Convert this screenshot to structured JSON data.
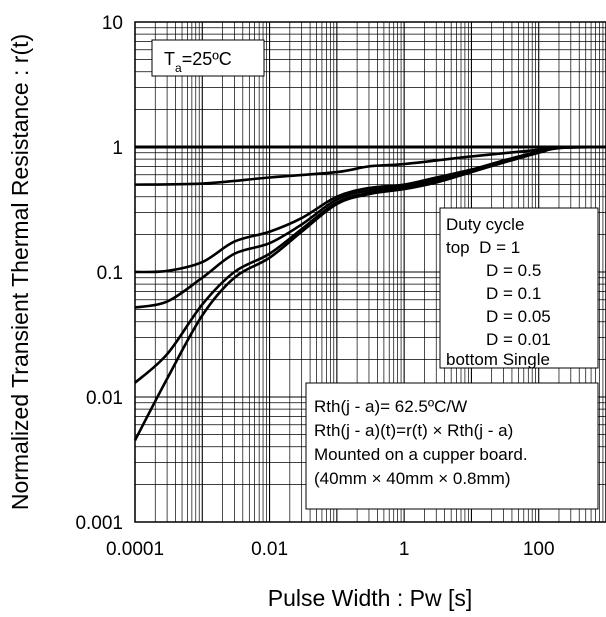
{
  "chart_data": {
    "type": "line",
    "x_scale": "log",
    "y_scale": "log",
    "xlim": [
      0.0001,
      1000
    ],
    "ylim": [
      0.001,
      10
    ],
    "grid": true,
    "xlabel": "Pulse Width : Pw [s]",
    "ylabel": "Normalized Transient Thermal Resistance : r(t)",
    "x_ticks": [
      {
        "value": 0.0001,
        "label": "0.0001"
      },
      {
        "value": 0.01,
        "label": "0.01"
      },
      {
        "value": 1,
        "label": "1"
      },
      {
        "value": 100,
        "label": "100"
      }
    ],
    "y_ticks": [
      {
        "value": 0.001,
        "label": "0.001"
      },
      {
        "value": 0.01,
        "label": "0.01"
      },
      {
        "value": 0.1,
        "label": "0.1"
      },
      {
        "value": 1,
        "label": "1"
      },
      {
        "value": 10,
        "label": "10"
      }
    ],
    "series": [
      {
        "name": "D = 1",
        "x": [
          0.0001,
          1000
        ],
        "y": [
          1,
          1
        ]
      },
      {
        "name": "D = 0.5",
        "x": [
          0.0001,
          0.001,
          0.01,
          0.1,
          0.3,
          1,
          10,
          100,
          300,
          1000
        ],
        "y": [
          0.5,
          0.51,
          0.57,
          0.63,
          0.7,
          0.73,
          0.84,
          0.95,
          1.0,
          1.0
        ]
      },
      {
        "name": "D = 0.1",
        "x": [
          0.0001,
          0.0003,
          0.001,
          0.003,
          0.01,
          0.03,
          0.1,
          0.3,
          1,
          3,
          10,
          30,
          100,
          200,
          1000
        ],
        "y": [
          0.1,
          0.102,
          0.12,
          0.175,
          0.21,
          0.27,
          0.4,
          0.47,
          0.5,
          0.57,
          0.66,
          0.78,
          0.92,
          0.99,
          1.0
        ]
      },
      {
        "name": "D = 0.05",
        "x": [
          0.0001,
          0.0003,
          0.001,
          0.003,
          0.01,
          0.03,
          0.1,
          0.3,
          1,
          3,
          10,
          30,
          100,
          200,
          1000
        ],
        "y": [
          0.052,
          0.058,
          0.09,
          0.14,
          0.17,
          0.24,
          0.38,
          0.45,
          0.48,
          0.55,
          0.65,
          0.77,
          0.92,
          0.99,
          1.0
        ]
      },
      {
        "name": "D = 0.01",
        "x": [
          0.0001,
          0.0003,
          0.001,
          0.003,
          0.01,
          0.03,
          0.1,
          0.3,
          1,
          3,
          10,
          30,
          100,
          200,
          1000
        ],
        "y": [
          0.013,
          0.022,
          0.055,
          0.1,
          0.14,
          0.22,
          0.36,
          0.43,
          0.47,
          0.53,
          0.64,
          0.76,
          0.91,
          0.98,
          1.0
        ]
      },
      {
        "name": "Single",
        "x": [
          0.0001,
          0.0003,
          0.001,
          0.003,
          0.01,
          0.03,
          0.1,
          0.3,
          1,
          3,
          10,
          30,
          100,
          200,
          1000
        ],
        "y": [
          0.0045,
          0.014,
          0.045,
          0.09,
          0.13,
          0.21,
          0.35,
          0.42,
          0.46,
          0.52,
          0.63,
          0.75,
          0.9,
          0.98,
          1.0
        ]
      }
    ]
  },
  "annotations": {
    "ta": {
      "base": "T",
      "sub": "a",
      "rest": "=25ºC"
    },
    "legend": {
      "title": "Duty cycle",
      "lines": [
        "top  D = 1",
        "D = 0.5",
        "D = 0.1",
        "D = 0.05",
        "D = 0.01",
        "bottom Single"
      ]
    },
    "info": {
      "lines": [
        "Rth(j - a)= 62.5ºC/W",
        "Rth(j - a)(t)=r(t) × Rth(j - a)",
        "Mounted on a cupper board.",
        "(40mm × 40mm × 0.8mm)"
      ]
    }
  }
}
